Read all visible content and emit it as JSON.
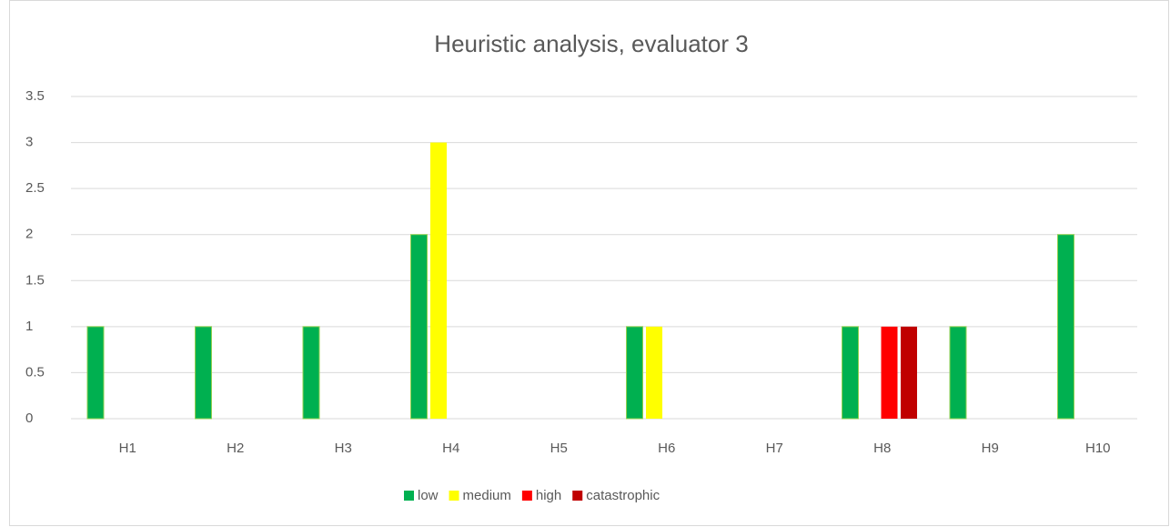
{
  "chart_data": {
    "type": "bar",
    "title": "Heuristic analysis, evaluator 3",
    "categories": [
      "H1",
      "H2",
      "H3",
      "H4",
      "H5",
      "H6",
      "H7",
      "H8",
      "H9",
      "H10"
    ],
    "series": [
      {
        "name": "low",
        "color": "#00b050",
        "values": [
          1,
          1,
          1,
          2,
          0,
          1,
          0,
          1,
          1,
          2
        ]
      },
      {
        "name": "medium",
        "color": "#ffff00",
        "values": [
          0,
          0,
          0,
          3,
          0,
          1,
          0,
          0,
          0,
          0
        ]
      },
      {
        "name": "high",
        "color": "#ff0000",
        "values": [
          0,
          0,
          0,
          0,
          0,
          0,
          0,
          1,
          0,
          0
        ]
      },
      {
        "name": "catastrophic",
        "color": "#c00000",
        "values": [
          0,
          0,
          0,
          0,
          0,
          0,
          0,
          1,
          0,
          0
        ]
      }
    ],
    "ylim": [
      0,
      3.5
    ],
    "yticks": [
      0,
      0.5,
      1,
      1.5,
      2,
      2.5,
      3,
      3.5
    ],
    "grid": true,
    "legend": "bottom"
  }
}
